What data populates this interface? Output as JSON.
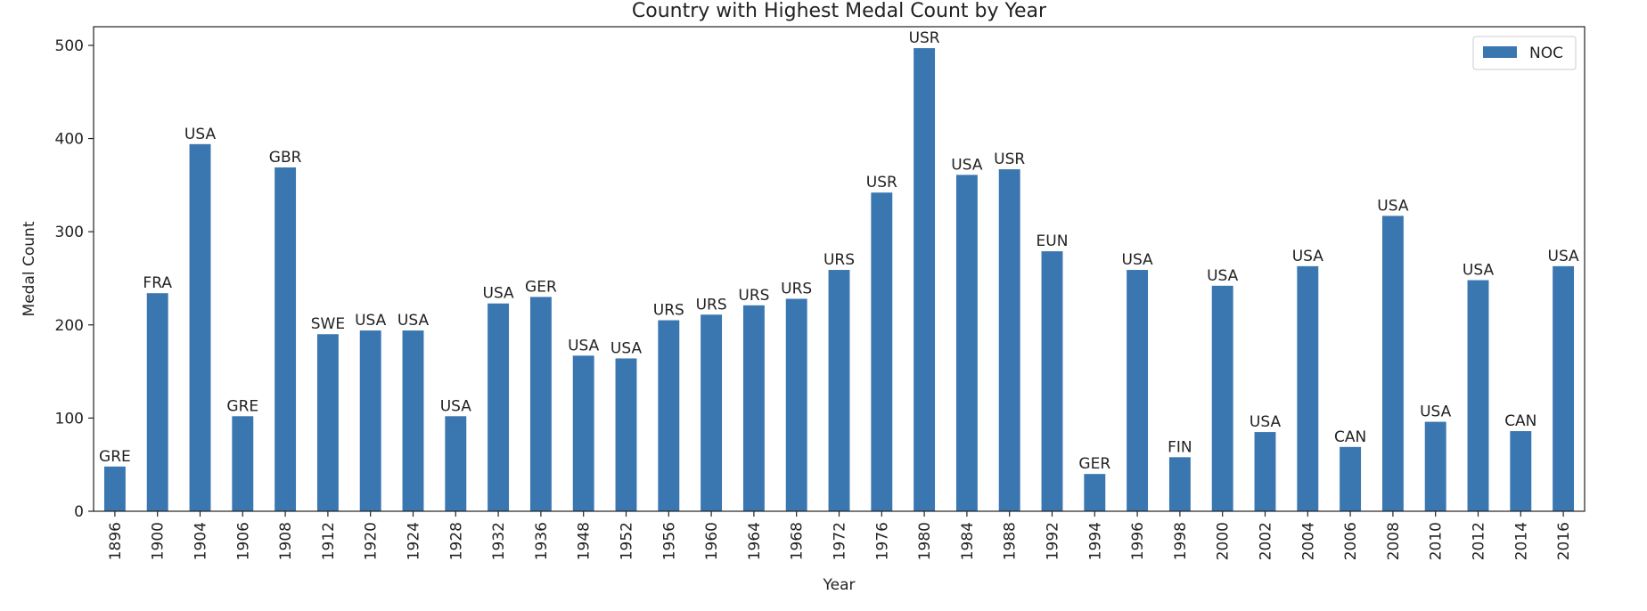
{
  "chart_data": {
    "type": "bar",
    "title": "Country with Highest Medal Count by Year",
    "xlabel": "Year",
    "ylabel": "Medal Count",
    "ylim": [
      0,
      520
    ],
    "yticks": [
      0,
      100,
      200,
      300,
      400,
      500
    ],
    "grid": false,
    "legend": {
      "position": "top-right",
      "entries": [
        "NOC"
      ]
    },
    "color": "#3a76b0",
    "categories": [
      "1896",
      "1900",
      "1904",
      "1906",
      "1908",
      "1912",
      "1920",
      "1924",
      "1928",
      "1932",
      "1936",
      "1948",
      "1952",
      "1956",
      "1960",
      "1964",
      "1968",
      "1972",
      "1976",
      "1980",
      "1984",
      "1988",
      "1992",
      "1994",
      "1996",
      "1998",
      "2000",
      "2002",
      "2004",
      "2006",
      "2008",
      "2010",
      "2012",
      "2014",
      "2016"
    ],
    "values": [
      48,
      234,
      394,
      102,
      369,
      190,
      194,
      194,
      102,
      223,
      230,
      167,
      164,
      205,
      211,
      221,
      228,
      259,
      342,
      497,
      361,
      367,
      279,
      40,
      259,
      58,
      242,
      85,
      263,
      69,
      317,
      96,
      248,
      86,
      263
    ],
    "bar_labels": [
      "GRE",
      "FRA",
      "USA",
      "GRE",
      "GBR",
      "SWE",
      "USA",
      "USA",
      "USA",
      "USA",
      "GER",
      "USA",
      "USA",
      "URS",
      "URS",
      "URS",
      "URS",
      "URS",
      "USR",
      "USR",
      "USA",
      "USR",
      "EUN",
      "GER",
      "USA",
      "FIN",
      "USA",
      "USA",
      "USA",
      "CAN",
      "USA",
      "USA",
      "USA",
      "CAN",
      "USA"
    ]
  }
}
